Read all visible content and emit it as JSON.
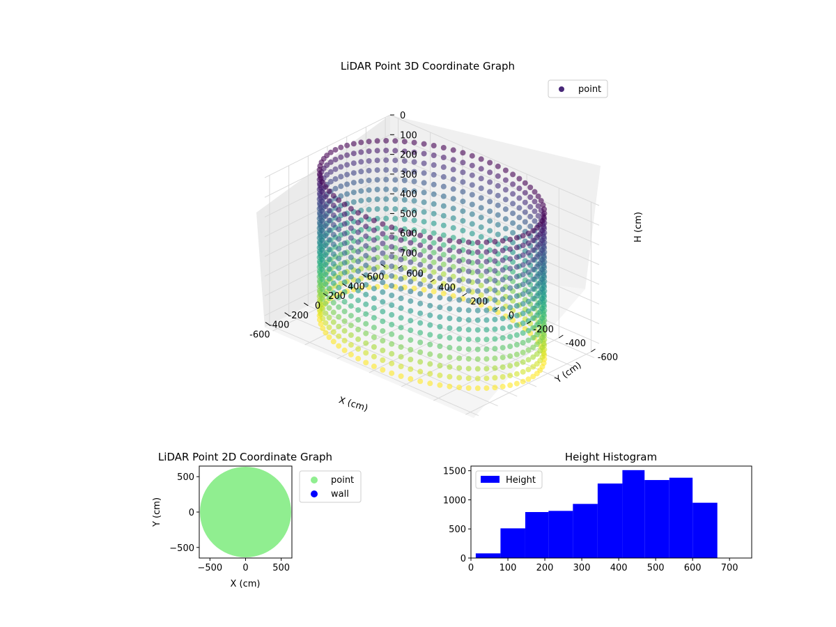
{
  "chart_data": [
    {
      "type": "scatter",
      "projection": "3d",
      "title": "LiDAR Point 3D Coordinate Graph",
      "xlabel": "X (cm)",
      "ylabel": "Y (cm)",
      "zlabel": "H (cm)",
      "xlim": [
        -650,
        650
      ],
      "ylim": [
        -650,
        650
      ],
      "zlim": [
        760,
        0
      ],
      "xticks": [
        -600,
        -400,
        -200,
        0,
        200,
        400,
        600
      ],
      "yticks": [
        -600,
        -400,
        -200,
        0,
        200,
        400,
        600
      ],
      "zticks": [
        0,
        100,
        200,
        300,
        400,
        500,
        600,
        700
      ],
      "colormap": "viridis",
      "legend": {
        "placement": "upper-right",
        "entries": [
          {
            "name": "point",
            "color": "#482878"
          }
        ]
      },
      "grid": true,
      "series": [
        {
          "name": "point",
          "description_shape": "cylindrical wall of scan columns",
          "radius": 600,
          "height_range": [
            0,
            740
          ],
          "columns": 72,
          "samples_per_column": 16
        }
      ]
    },
    {
      "type": "scatter",
      "title": "LiDAR Point 2D Coordinate Graph",
      "xlabel": "X (cm)",
      "ylabel": "Y (cm)",
      "xlim": [
        -650,
        650
      ],
      "ylim": [
        -650,
        650
      ],
      "xticks": [
        -500,
        0,
        500
      ],
      "yticks": [
        -500,
        0,
        500
      ],
      "legend": {
        "placement": "outside-right",
        "entries": [
          {
            "name": "point",
            "color": "#90ee90"
          },
          {
            "name": "wall",
            "color": "#0000ff"
          }
        ]
      },
      "series": [
        {
          "name": "point",
          "color": "#90ee90",
          "disk_radius": 640
        }
      ]
    },
    {
      "type": "bar",
      "subtype": "histogram",
      "title": "Height Histogram",
      "xlabel": "",
      "ylabel": "",
      "xlim": [
        0,
        760
      ],
      "ylim": [
        0,
        1580
      ],
      "xticks": [
        0,
        100,
        200,
        300,
        400,
        500,
        600,
        700
      ],
      "yticks": [
        0,
        500,
        1000,
        1500
      ],
      "color": "#0000ff",
      "legend": {
        "placement": "upper-left",
        "entries": [
          {
            "name": "Height",
            "color": "#0000ff"
          }
        ]
      },
      "bin_edges": [
        13,
        80,
        147,
        210,
        276,
        343,
        410,
        470,
        537,
        600,
        667
      ],
      "values": [
        80,
        510,
        790,
        810,
        930,
        1280,
        1510,
        1340,
        1380,
        950
      ]
    }
  ]
}
